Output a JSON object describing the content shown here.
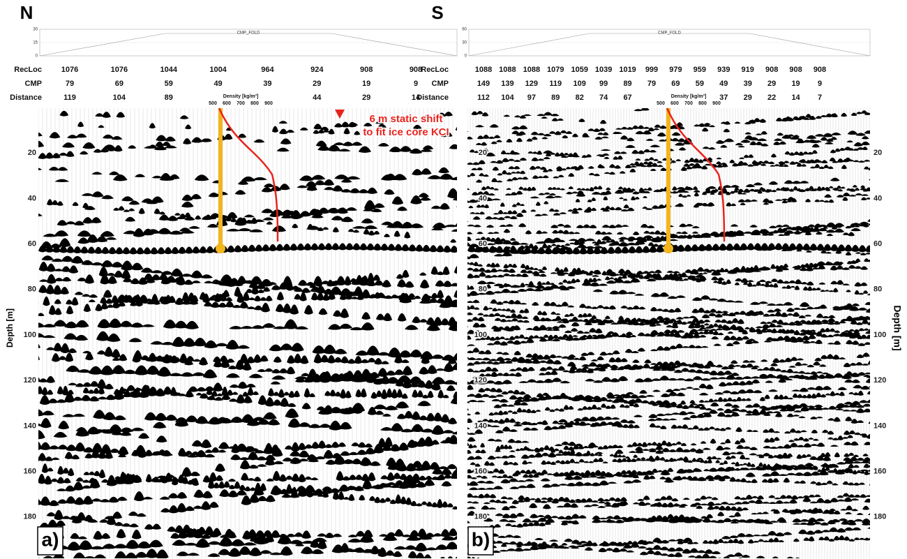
{
  "directions": {
    "left": "N",
    "right": "S"
  },
  "depth_label": "Depth [m]",
  "panels": [
    {
      "label": "a)",
      "fold": {
        "title": "CMP_FOLD",
        "ticks": [
          30,
          15,
          0
        ]
      },
      "header": [
        {
          "name": "RecLoc",
          "values": [
            1076,
            1076,
            1044,
            1004,
            964,
            924,
            908,
            908
          ]
        },
        {
          "name": "CMP",
          "values": [
            79,
            69,
            59,
            49,
            39,
            29,
            19,
            9
          ]
        },
        {
          "name": "Distance",
          "values": [
            119,
            104,
            89,
            null,
            null,
            44,
            29,
            14
          ]
        }
      ],
      "density": {
        "label": "Density [kg/m³]",
        "ticks": [
          500,
          600,
          700,
          800,
          900
        ]
      },
      "depth_ticks": [
        20,
        40,
        60,
        80,
        100,
        120,
        140,
        160,
        180
      ],
      "annotation": [
        "6 m static shift",
        "to fit ice core KCI"
      ]
    },
    {
      "label": "b)",
      "fold": {
        "title": "CMP_FOLD",
        "ticks": [
          60,
          30,
          0
        ]
      },
      "header": [
        {
          "name": "RecLoc",
          "values": [
            1088,
            1088,
            1088,
            1079,
            1059,
            1039,
            1019,
            999,
            979,
            959,
            939,
            919,
            908,
            908,
            908
          ]
        },
        {
          "name": "CMP",
          "values": [
            149,
            139,
            129,
            119,
            109,
            99,
            89,
            79,
            69,
            59,
            49,
            39,
            29,
            19,
            9
          ]
        },
        {
          "name": "Distance",
          "values": [
            112,
            104,
            97,
            89,
            82,
            74,
            67,
            null,
            null,
            null,
            37,
            29,
            22,
            14,
            7
          ]
        }
      ],
      "density": {
        "label": "Density [kg/m³]",
        "ticks": [
          500,
          600,
          700,
          800,
          900
        ]
      },
      "depth_ticks": [
        20,
        40,
        60,
        80,
        100,
        120,
        140,
        160,
        180
      ]
    }
  ]
}
